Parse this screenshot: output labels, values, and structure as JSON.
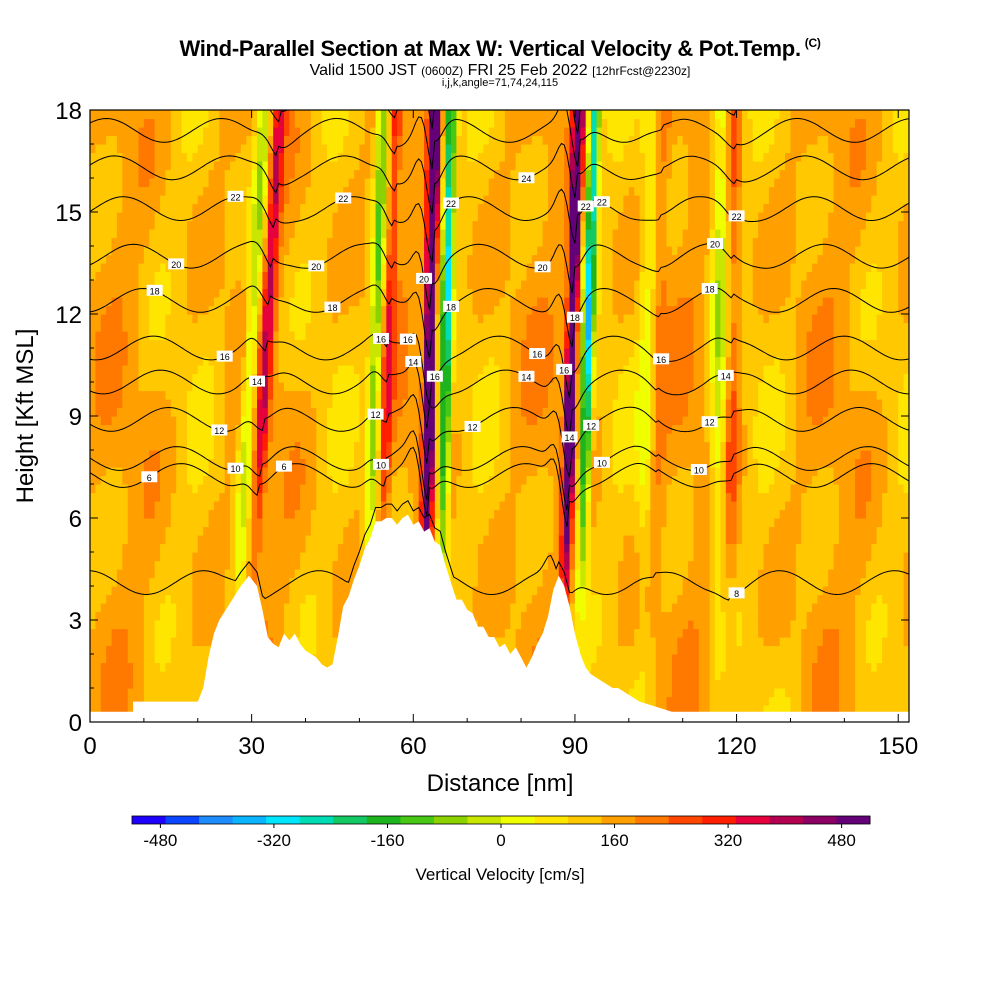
{
  "title": {
    "main": "Wind-Parallel Section at Max W: Vertical Velocity & Pot.Temp.",
    "copyright": "(C)",
    "valid_prefix": "Valid 1500 JST",
    "utc": "(0600Z)",
    "valid_date": "FRI 25 Feb 2022",
    "forecast": "[12hrFcst@2230z]",
    "indices": "i,j,k,angle=71,74,24,115"
  },
  "colors": {
    "palette": [
      "#1e00ff",
      "#0a46ff",
      "#1e8cff",
      "#0ab4ff",
      "#00e6ff",
      "#00dcb4",
      "#14c864",
      "#1eb41e",
      "#46c814",
      "#8cd200",
      "#c8e600",
      "#f0ff00",
      "#ffe600",
      "#ffc800",
      "#ffa000",
      "#ff7800",
      "#ff4600",
      "#ff1e00",
      "#e6003c",
      "#b40050",
      "#8c0064",
      "#640078"
    ],
    "contour": "#000000",
    "terrain": "#ffffff"
  },
  "chart_data": {
    "type": "heatmap",
    "xlabel": "Distance [nm]",
    "ylabel": "Height [Kft MSL]",
    "xlim": [
      0,
      152
    ],
    "ylim": [
      0,
      18
    ],
    "x_ticks": [
      0,
      30,
      60,
      90,
      120,
      150
    ],
    "y_ticks": [
      0,
      3,
      6,
      9,
      12,
      15,
      18
    ],
    "colorbar": {
      "label": "Vertical Velocity [cm/s]",
      "ticks": [
        "-480",
        "-320",
        "-160",
        "0",
        "160",
        "320",
        "480"
      ],
      "tick_values": [
        -480,
        -320,
        -160,
        0,
        160,
        320,
        480
      ],
      "range": [
        -520,
        520
      ],
      "step": 40
    },
    "terrain_profile": [
      [
        0,
        0.3
      ],
      [
        8,
        0.3
      ],
      [
        8,
        0.6
      ],
      [
        20,
        0.6
      ],
      [
        21,
        1.0
      ],
      [
        22,
        1.9
      ],
      [
        23,
        2.6
      ],
      [
        24,
        3.0
      ],
      [
        26,
        3.5
      ],
      [
        28,
        4.0
      ],
      [
        29.5,
        4.3
      ],
      [
        31,
        4.0
      ],
      [
        32,
        3.3
      ],
      [
        33,
        2.5
      ],
      [
        34,
        2.3
      ],
      [
        35,
        2.2
      ],
      [
        36,
        2.6
      ],
      [
        37,
        2.4
      ],
      [
        38,
        2.6
      ],
      [
        39,
        2.3
      ],
      [
        40,
        2.1
      ],
      [
        41,
        2.0
      ],
      [
        42,
        1.9
      ],
      [
        43,
        1.7
      ],
      [
        44,
        1.6
      ],
      [
        45,
        1.7
      ],
      [
        46,
        2.5
      ],
      [
        47,
        3.4
      ],
      [
        48,
        3.7
      ],
      [
        49,
        4.2
      ],
      [
        50,
        4.6
      ],
      [
        51,
        5.1
      ],
      [
        52,
        5.4
      ],
      [
        53,
        5.9
      ],
      [
        54,
        5.9
      ],
      [
        55,
        6.0
      ],
      [
        56,
        6.0
      ],
      [
        57,
        5.8
      ],
      [
        58,
        6.0
      ],
      [
        59,
        6.1
      ],
      [
        60,
        5.8
      ],
      [
        61,
        5.9
      ],
      [
        62,
        5.6
      ],
      [
        63,
        5.7
      ],
      [
        64,
        5.3
      ],
      [
        65,
        5.2
      ],
      [
        66,
        4.6
      ],
      [
        67,
        4.1
      ],
      [
        68,
        3.6
      ],
      [
        69,
        3.6
      ],
      [
        70,
        3.3
      ],
      [
        71,
        3.2
      ],
      [
        72,
        2.8
      ],
      [
        73,
        2.8
      ],
      [
        74,
        2.5
      ],
      [
        75,
        2.5
      ],
      [
        76,
        2.2
      ],
      [
        77,
        2.3
      ],
      [
        78,
        2.0
      ],
      [
        79,
        2.2
      ],
      [
        80,
        1.9
      ],
      [
        81,
        1.6
      ],
      [
        82,
        1.9
      ],
      [
        83,
        2.3
      ],
      [
        84,
        2.6
      ],
      [
        85,
        3.1
      ],
      [
        86,
        3.9
      ],
      [
        87,
        4.3
      ],
      [
        88,
        4.0
      ],
      [
        89,
        3.4
      ],
      [
        90,
        2.6
      ],
      [
        91,
        2.0
      ],
      [
        92,
        1.6
      ],
      [
        93,
        1.4
      ],
      [
        94,
        1.3
      ],
      [
        95,
        1.2
      ],
      [
        96,
        1.1
      ],
      [
        97,
        1.0
      ],
      [
        98,
        1.0
      ],
      [
        99,
        0.9
      ],
      [
        100,
        0.8
      ],
      [
        101,
        0.7
      ],
      [
        102,
        0.6
      ],
      [
        104,
        0.5
      ],
      [
        106,
        0.4
      ],
      [
        108,
        0.3
      ],
      [
        152,
        0.3
      ]
    ],
    "isentropes": [
      {
        "label": "6",
        "base": 7.25,
        "positions": [
          11,
          36
        ]
      },
      {
        "label": "8",
        "base": 4.1,
        "positions": [
          120
        ]
      },
      {
        "label": "10",
        "base": 7.75,
        "positions": [
          27,
          54,
          95,
          113
        ]
      },
      {
        "label": "12",
        "base": 8.9,
        "positions": [
          24,
          53,
          71,
          93,
          115
        ]
      },
      {
        "label": "14",
        "base": 10.0,
        "positions": [
          31,
          60,
          81,
          89,
          118
        ]
      },
      {
        "label": "16",
        "base": 11.0,
        "positions": [
          25,
          54,
          59,
          64,
          83,
          88,
          106
        ]
      },
      {
        "label": "18",
        "base": 12.4,
        "positions": [
          12,
          45,
          67,
          90,
          115
        ]
      },
      {
        "label": "20",
        "base": 13.7,
        "positions": [
          16,
          42,
          62,
          84,
          116
        ]
      },
      {
        "label": "22",
        "base": 15.1,
        "positions": [
          27,
          47,
          67,
          92,
          95,
          120
        ]
      },
      {
        "label": "24",
        "base": 16.3,
        "positions": [
          81
        ]
      },
      {
        "label": "",
        "base": 17.4,
        "positions": []
      },
      {
        "label": "",
        "base": 18.4,
        "positions": []
      }
    ],
    "vertical_velocity_features": [
      {
        "x": 62.5,
        "tilt": 0.12,
        "amplitude": 500,
        "width": 0.9,
        "pair_offset": 3.0,
        "pair_amplitude": -330
      },
      {
        "x": 88.5,
        "tilt": 0.18,
        "amplitude": 470,
        "width": 0.9,
        "pair_offset": 3.0,
        "pair_amplitude": -360
      },
      {
        "x": 31.0,
        "tilt": 0.35,
        "amplitude": 180,
        "width": 1.2,
        "pair_offset": -2.8,
        "pair_amplitude": -170
      },
      {
        "x": 54.5,
        "tilt": 0.2,
        "amplitude": 130,
        "width": 1.0,
        "pair_offset": -2.5,
        "pair_amplitude": -200
      },
      {
        "x": 119.0,
        "tilt": 0.05,
        "amplitude": 90,
        "width": 1.4,
        "pair_offset": -2.5,
        "pair_amplitude": -140
      },
      {
        "x": 105.0,
        "tilt": 0.1,
        "amplitude": 60,
        "width": 1.5,
        "pair_offset": -2.0,
        "pair_amplitude": -90
      }
    ]
  }
}
